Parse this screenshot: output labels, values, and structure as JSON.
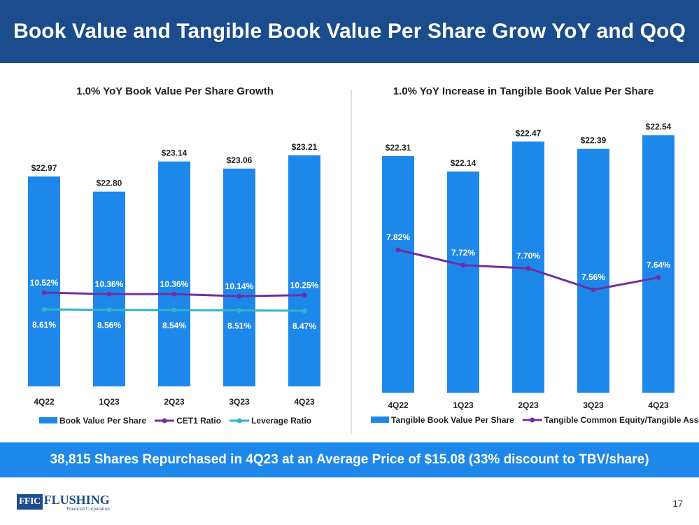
{
  "header": {
    "title": "Book Value and Tangible Book Value Per Share Grow YoY and QoQ"
  },
  "colors": {
    "header_bg": "#1B4C8C",
    "bar": "#1E88EA",
    "cet1_line": "#7030A0",
    "leverage_line": "#33B2C8",
    "tce_line": "#7030A0",
    "banner": "#1E88EA"
  },
  "chart_data": [
    {
      "type": "bar+line",
      "title": "1.0% YoY Book Value Per Share Growth",
      "categories": [
        "4Q22",
        "1Q23",
        "2Q23",
        "3Q23",
        "4Q23"
      ],
      "bar_series": {
        "name": "Book Value Per Share",
        "values": [
          22.97,
          22.8,
          23.14,
          23.06,
          23.21
        ],
        "labels": [
          "$22.97",
          "$22.80",
          "$23.14",
          "$23.06",
          "$23.21"
        ]
      },
      "line_series": [
        {
          "name": "CET1 Ratio",
          "values": [
            10.52,
            10.36,
            10.36,
            10.14,
            10.25
          ],
          "labels": [
            "10.52%",
            "10.36%",
            "10.36%",
            "10.14%",
            "10.25%"
          ]
        },
        {
          "name": "Leverage Ratio",
          "values": [
            8.61,
            8.56,
            8.54,
            8.51,
            8.47
          ],
          "labels": [
            "8.61%",
            "8.56%",
            "8.54%",
            "8.51%",
            "8.47%"
          ]
        }
      ],
      "legend": [
        "Book Value Per Share",
        "CET1 Ratio",
        "Leverage Ratio"
      ],
      "legend_position": "bottom"
    },
    {
      "type": "bar+line",
      "title": "1.0% YoY Increase in Tangible Book Value Per Share",
      "categories": [
        "4Q22",
        "1Q23",
        "2Q23",
        "3Q23",
        "4Q23"
      ],
      "bar_series": {
        "name": "Tangible Book Value Per Share",
        "values": [
          22.31,
          22.14,
          22.47,
          22.39,
          22.54
        ],
        "labels": [
          "$22.31",
          "$22.14",
          "$22.47",
          "$22.39",
          "$22.54"
        ]
      },
      "line_series": [
        {
          "name": "Tangible Common Equity/Tangible Assets",
          "values": [
            7.82,
            7.72,
            7.7,
            7.56,
            7.64
          ],
          "labels": [
            "7.82%",
            "7.72%",
            "7.70%",
            "7.56%",
            "7.64%"
          ]
        }
      ],
      "legend": [
        "Tangible Book Value Per Share",
        "Tangible Common Equity/Tangible Assets"
      ],
      "legend_position": "bottom"
    }
  ],
  "footer": {
    "banner_text": "38,815 Shares Repurchased in 4Q23 at an Average Price of $15.08 (33% discount to TBV/share)"
  },
  "logo": {
    "box_text": "FFIC",
    "name": "FLUSHING",
    "subtitle": "Financial Corporation"
  },
  "page_number": "17"
}
